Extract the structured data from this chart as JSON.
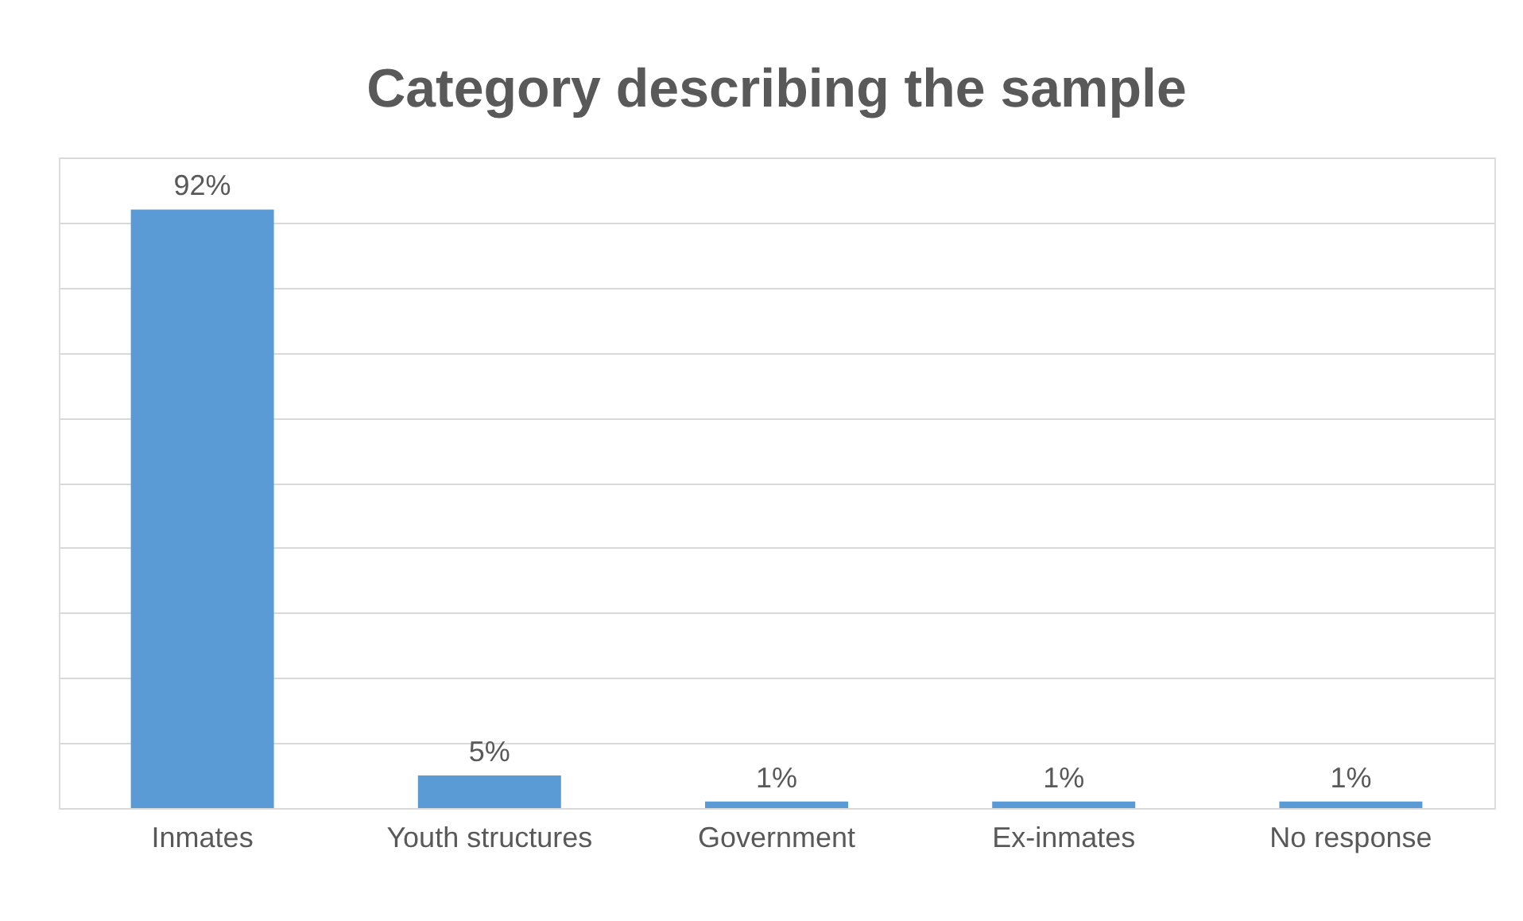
{
  "chart_data": {
    "type": "bar",
    "title": "Category describing the sample",
    "categories": [
      "Inmates",
      "Youth structures",
      "Government",
      "Ex-inmates",
      "No response"
    ],
    "values": [
      92,
      5,
      1,
      1,
      1
    ],
    "color": "#5b9bd5",
    "value_labels": [
      "92%",
      "5%",
      "1%",
      "1%",
      "1%"
    ],
    "ylim": [
      0,
      100
    ],
    "yticks": [
      {
        "value": 0,
        "label": null
      },
      {
        "value": 10,
        "label": null
      },
      {
        "value": 20,
        "label": null
      },
      {
        "value": 30,
        "label": null
      },
      {
        "value": 40,
        "label": null
      },
      {
        "value": 50,
        "label": null
      },
      {
        "value": 60,
        "label": null
      },
      {
        "value": 70,
        "label": null
      },
      {
        "value": 80,
        "label": null
      },
      {
        "value": 90,
        "label": null
      },
      {
        "value": 100,
        "label": null
      }
    ],
    "grid": "y",
    "tick_labels": "x"
  }
}
